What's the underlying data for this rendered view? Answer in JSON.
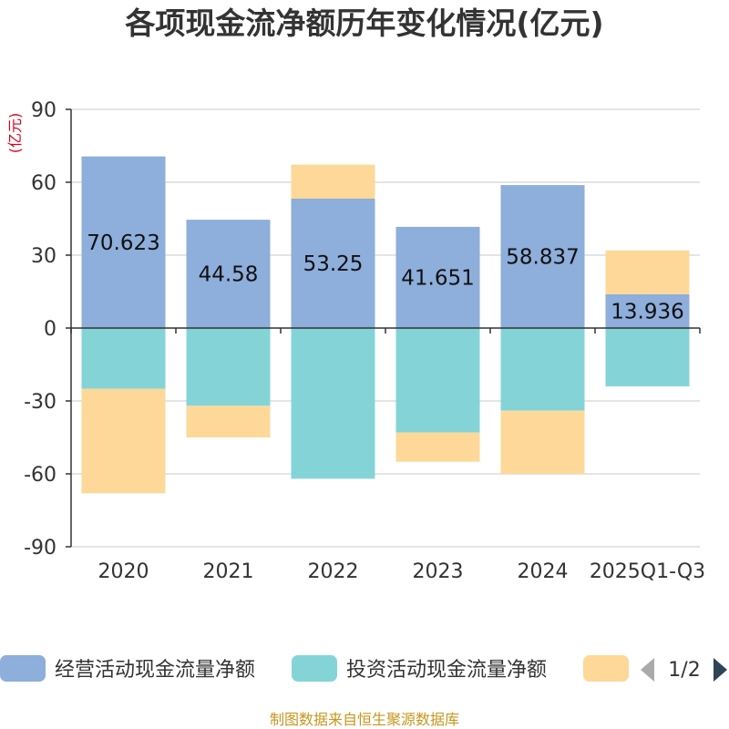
{
  "chart_data": {
    "type": "bar",
    "stacked": true,
    "title": "各项现金流净额历年变化情况(亿元)",
    "ylabel": "(亿元)",
    "ylim": [
      -90,
      90
    ],
    "yticks": [
      90,
      60,
      30,
      0,
      -30,
      -60,
      -90
    ],
    "categories": [
      "2020",
      "2021",
      "2022",
      "2023",
      "2024",
      "2025Q1-Q3"
    ],
    "series": [
      {
        "name": "经营活动现金流量净额",
        "color": "#8eaedb",
        "values": [
          70.623,
          44.58,
          53.25,
          41.651,
          58.837,
          13.936
        ],
        "show_labels": true
      },
      {
        "name": "投资活动现金流量净额",
        "color": "#84d4d7",
        "values": [
          -25,
          -32,
          -62,
          -43,
          -34,
          -24
        ],
        "show_labels": false
      },
      {
        "name": "",
        "color": "#fed899",
        "values": [
          -43,
          -13,
          14,
          -12,
          -26,
          18
        ],
        "show_labels": false
      }
    ],
    "legend": {
      "placement": "bottom",
      "page": "1/2"
    },
    "source": "制图数据来自恒生聚源数据库"
  }
}
